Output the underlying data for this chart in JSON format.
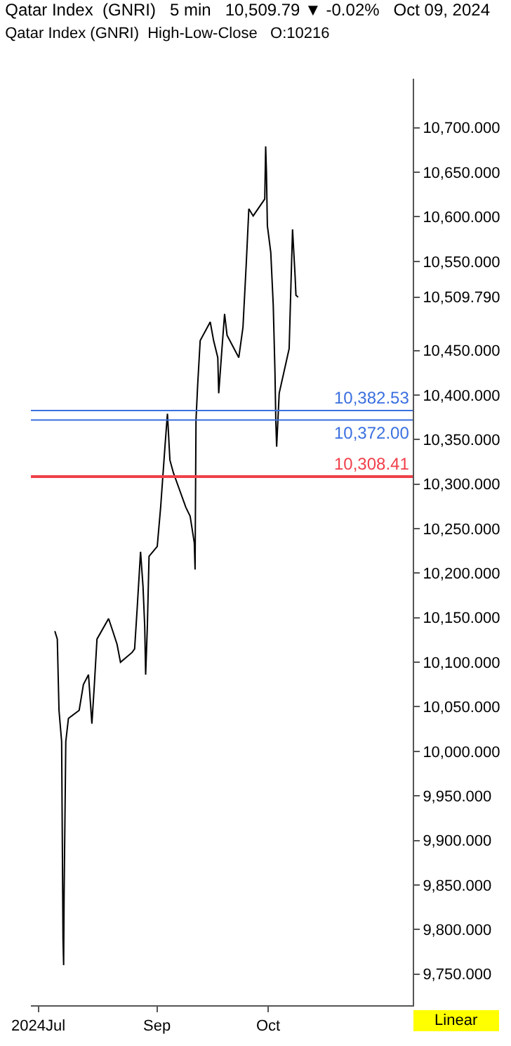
{
  "chart_data": {
    "type": "line",
    "title": "Qatar Index  (GNRI)   5 min   10,509.79 ▼ -0.02%   Oct 09, 2024",
    "subtitle": "Qatar Index (GNRI)  High-Low-Close   O:10216",
    "x": [
      "2024-08-04T11:00",
      "2024-08-05T03:00",
      "2024-08-05T14:00",
      "2024-08-06T07:00",
      "2024-08-06T16:00",
      "2024-08-06T20:00",
      "2024-08-06T23:00",
      "2024-08-07T10:00",
      "2024-08-08T03:00",
      "2024-08-11T00:30",
      "2024-08-12T04:00",
      "2024-08-13T13:00",
      "2024-08-14T11:00",
      "2024-08-15T03:00",
      "2024-08-15T20:00",
      "2024-08-18T23:00",
      "2024-08-20T02:00",
      "2024-08-21T06:00",
      "2024-08-22T04:00",
      "2024-08-25T07:00",
      "2024-08-25T23:30",
      "2024-08-26T16:00",
      "2024-08-27T14:00",
      "2024-08-28T06:00",
      "2024-08-28T17:00",
      "2024-08-28T23:00",
      "2024-08-29T10:00",
      "2024-08-29T21:00",
      "2024-09-01T02:00",
      "2024-09-02T00:00",
      "2024-09-03T04:00",
      "2024-09-03T20:00",
      "2024-09-04T12:00",
      "2024-09-05T10:00",
      "2024-09-08T19:00",
      "2024-09-09T23:00",
      "2024-09-11T02:00",
      "2024-09-11T07:00",
      "2024-09-11T13:00",
      "2024-09-12T00:00",
      "2024-09-12T16:00",
      "2024-09-15T09:00",
      "2024-09-16T07:00",
      "2024-09-17T10:00",
      "2024-09-17T16:00",
      "2024-09-18T13:00",
      "2024-09-19T06:00",
      "2024-09-19T22:00",
      "2024-09-23T02:00",
      "2024-09-24T05:00",
      "2024-09-25T03:00",
      "2024-09-25T19:00",
      "2024-09-26T23:00",
      "2024-09-30T02:00",
      "2024-09-30T08:00",
      "2024-09-30T13:00",
      "2024-09-30T19:00",
      "2024-10-01T17:00",
      "2024-10-02T09:00",
      "2024-10-02T20:00",
      "2024-10-03T01:30",
      "2024-10-03T07:00",
      "2024-10-03T23:30",
      "2024-10-06T16:00",
      "2024-10-07T03:00",
      "2024-10-07T14:00",
      "2024-10-08T06:00",
      "2024-10-08T12:00",
      "2024-10-09T02:00"
    ],
    "series": [
      {
        "color": "#000000",
        "values": [
          10135,
          10126,
          10046,
          10011,
          9789,
          9760,
          9838,
          10011,
          10037,
          10046,
          10075,
          10086,
          10031,
          10075,
          10126,
          10149,
          10135,
          10120,
          10100,
          10111,
          10115,
          10160,
          10224,
          10185,
          10140,
          10086,
          10140,
          10219,
          10230,
          10274,
          10342,
          10379,
          10327,
          10313,
          10274,
          10264,
          10234,
          10204,
          10372,
          10412,
          10461,
          10482,
          10461,
          10442,
          10402,
          10452,
          10491,
          10467,
          10442,
          10476,
          10550,
          10609,
          10601,
          10620,
          10679,
          10650,
          10590,
          10560,
          10501,
          10427,
          10372,
          10342,
          10402,
          10452,
          10520,
          10586,
          10535,
          10512,
          10509.79
        ]
      }
    ],
    "xlim": [
      "2024-07-29",
      "2024-11-09"
    ],
    "xticks": [
      {
        "value": "2024-07-31",
        "label": "2024Jul"
      },
      {
        "value": "2024-09-01",
        "label": "Sep"
      },
      {
        "value": "2024-10-01",
        "label": "Oct"
      }
    ],
    "ylim": [
      9715,
      10755
    ],
    "yticks": [
      {
        "value": 9750,
        "label": "9,750.000"
      },
      {
        "value": 9800,
        "label": "9,800.000"
      },
      {
        "value": 9850,
        "label": "9,850.000"
      },
      {
        "value": 9900,
        "label": "9,900.000"
      },
      {
        "value": 9950,
        "label": "9,950.000"
      },
      {
        "value": 10000,
        "label": "10,000.000"
      },
      {
        "value": 10050,
        "label": "10,050.000"
      },
      {
        "value": 10100,
        "label": "10,100.000"
      },
      {
        "value": 10150,
        "label": "10,150.000"
      },
      {
        "value": 10200,
        "label": "10,200.000"
      },
      {
        "value": 10250,
        "label": "10,250.000"
      },
      {
        "value": 10300,
        "label": "10,300.000"
      },
      {
        "value": 10350,
        "label": "10,350.000"
      },
      {
        "value": 10400,
        "label": "10,400.000"
      },
      {
        "value": 10450,
        "label": "10,450.000"
      },
      {
        "value": 10509.79,
        "label": "10,509.790"
      },
      {
        "value": 10550,
        "label": "10,550.000"
      },
      {
        "value": 10600,
        "label": "10,600.000"
      },
      {
        "value": 10650,
        "label": "10,650.000"
      },
      {
        "value": 10700,
        "label": "10,700.000"
      }
    ],
    "ref_lines": [
      {
        "axis": "y",
        "value": 10382.53,
        "label": "10,382.53",
        "color": "#3a6fe0"
      },
      {
        "axis": "y",
        "value": 10372.0,
        "label": "10,372.00",
        "color": "#3a6fe0"
      },
      {
        "axis": "y",
        "value": 10308.41,
        "label": "10,308.41",
        "color": "#f0404a"
      }
    ],
    "annotations": [
      "Linear"
    ],
    "marker": "none",
    "line_style": "solid"
  }
}
